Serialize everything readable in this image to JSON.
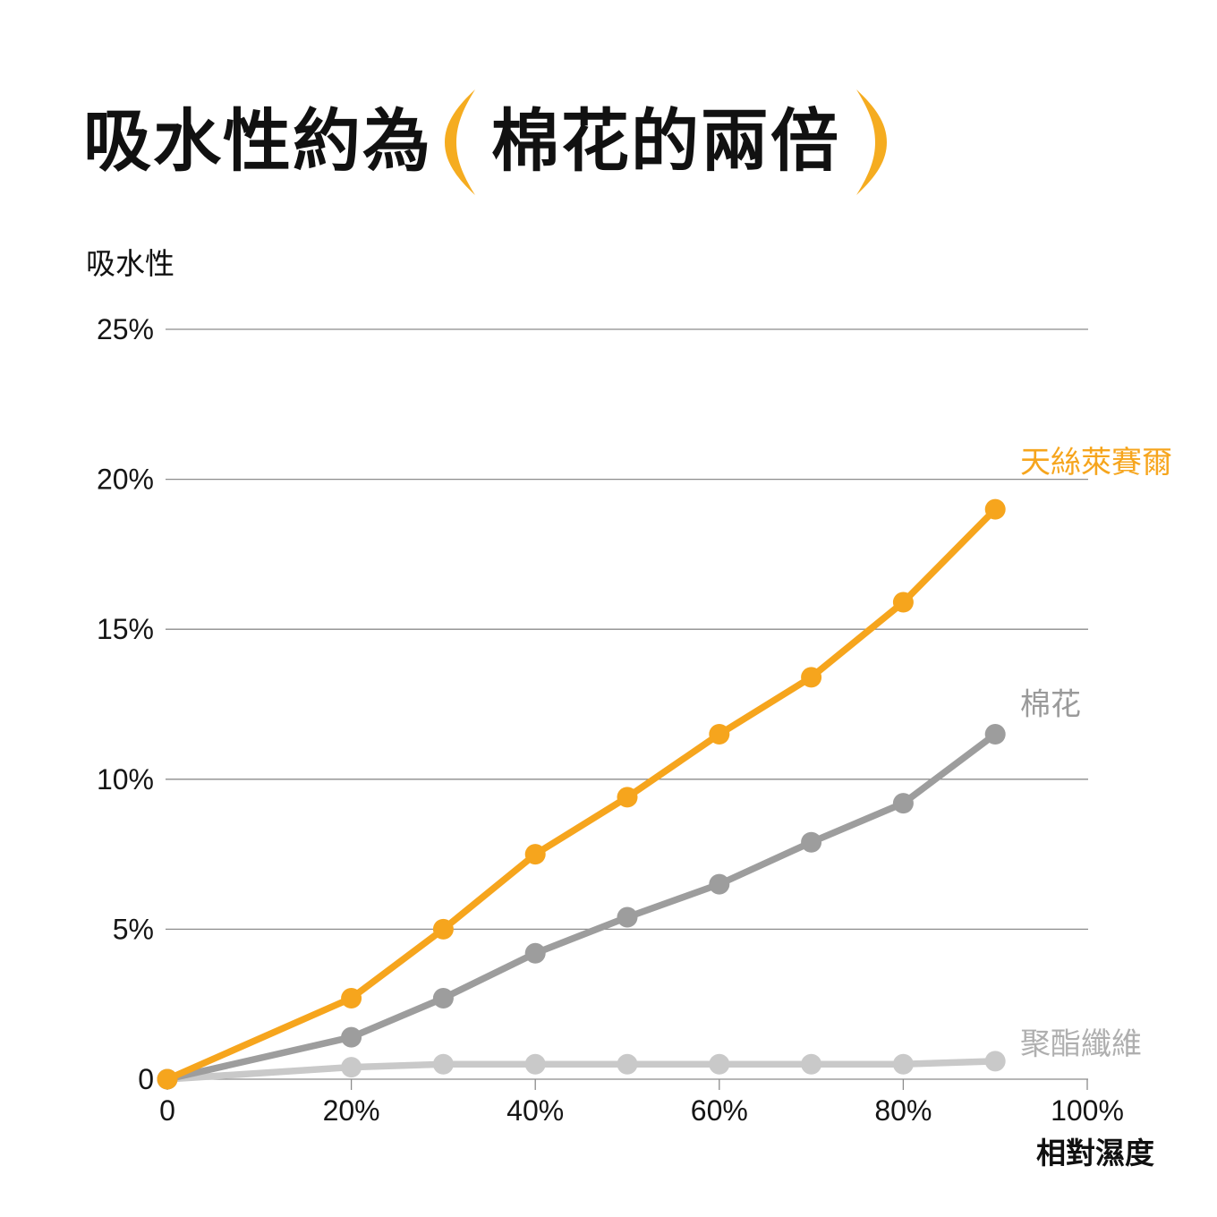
{
  "page": {
    "background": "#ffffff"
  },
  "title": {
    "prefix": "吸水性約為",
    "highlight": "棉花的兩倍",
    "text_color": "#111111",
    "paren_color": "#F5AC20"
  },
  "chart_data": {
    "type": "line",
    "title": "吸水性約為（棉花的兩倍）",
    "ylabel": "吸水性",
    "xlabel": "相對濕度",
    "xlim": [
      0,
      100
    ],
    "ylim": [
      0,
      25
    ],
    "grid": "horizontal",
    "legend_position": "end-of-line-labels",
    "x_ticks": {
      "values": [
        0,
        20,
        40,
        60,
        80,
        100
      ],
      "labels": [
        "0",
        "20%",
        "40%",
        "60%",
        "80%",
        "100%"
      ]
    },
    "y_ticks": {
      "values": [
        0,
        5,
        10,
        15,
        20,
        25
      ],
      "labels": [
        "0",
        "5%",
        "10%",
        "15%",
        "20%",
        "25%"
      ]
    },
    "x": [
      0,
      20,
      30,
      40,
      50,
      60,
      70,
      80,
      90
    ],
    "series": [
      {
        "name": "天絲萊賽爾",
        "color": "#F6A51D",
        "label_color": "#F6A51D",
        "values": [
          0,
          2.7,
          5.0,
          7.5,
          9.4,
          11.5,
          13.4,
          15.9,
          19.0
        ]
      },
      {
        "name": "棉花",
        "color": "#9D9D9D",
        "label_color": "#9A9A9A",
        "values": [
          0,
          1.4,
          2.7,
          4.2,
          5.4,
          6.5,
          7.9,
          9.2,
          11.5
        ]
      },
      {
        "name": "聚酯纖維",
        "color": "#C9C9C9",
        "label_color": "#AFAFAF",
        "values": [
          0,
          0.4,
          0.5,
          0.5,
          0.5,
          0.5,
          0.5,
          0.5,
          0.6
        ]
      }
    ]
  }
}
